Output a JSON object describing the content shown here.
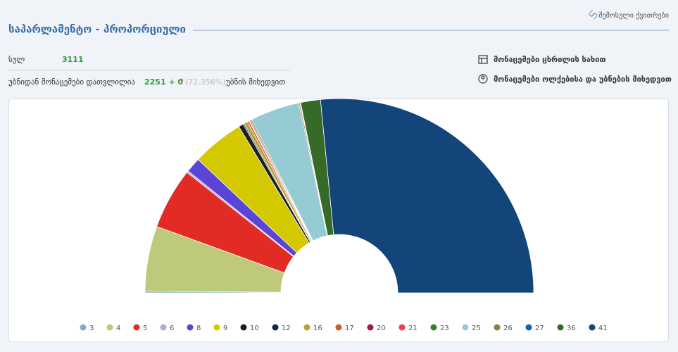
{
  "header": {
    "title": "საპარლამენტო - პროპორციული",
    "receipts_link": "შემოსული ქვითრები"
  },
  "stats": {
    "total_label": "სულ",
    "total_value": "3111",
    "counted_label": "უბნიდან მონაცემები დათვლილია",
    "counted_value": "2251 + 0",
    "asterisk": "*",
    "percent": "(72.356%)",
    "counted_suffix": "უბნის მიხედვით"
  },
  "links": {
    "table_view": "მონაცემები ცხრილის სახით",
    "district_view": "მონაცემები ოლქებისა და უბნების მიხედვით"
  },
  "chart_data": {
    "type": "half-donut",
    "categories": [
      "3",
      "4",
      "5",
      "6",
      "8",
      "9",
      "10",
      "12",
      "16",
      "17",
      "20",
      "21",
      "23",
      "25",
      "26",
      "27",
      "36",
      "41"
    ],
    "values": [
      0.3,
      10.8,
      10.2,
      0.3,
      2.5,
      8.6,
      0.8,
      0.2,
      0.6,
      0.3,
      0.1,
      0.2,
      0.2,
      8.2,
      0.2,
      0.1,
      3.3,
      53.1
    ],
    "colors": [
      "#7fb0b8",
      "#bfc97a",
      "#e32b26",
      "#b6a6d9",
      "#5b45d4",
      "#d4c800",
      "#1e1e1e",
      "#15264d",
      "#b5a33a",
      "#c8602a",
      "#9e1a4a",
      "#e8405a",
      "#3a7d2a",
      "#97cbd3",
      "#8c7f45",
      "#1a5ea8",
      "#356a29",
      "#14457a"
    ]
  }
}
